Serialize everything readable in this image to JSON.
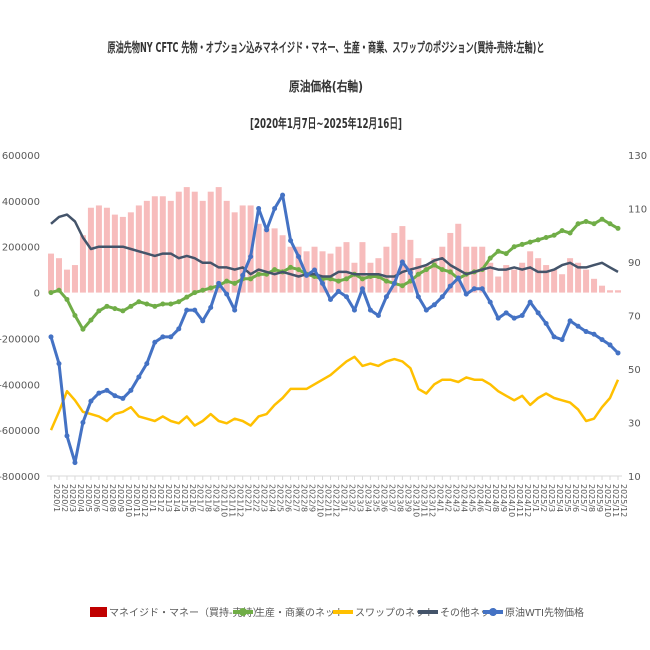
{
  "chart_data": {
    "type": "line",
    "title": [
      "原油先物NY CFTC 先物・オプション込みマネイジド・マネー、生産・商業、スワップのポジション(買持-売持:左軸)と",
      "原油価格(右軸)",
      "[2020年1月7日~2025年12月16日]"
    ],
    "left_axis": {
      "ylim": [
        -800000,
        600000
      ],
      "ticks": [
        600000,
        400000,
        200000,
        0,
        -200000,
        -400000,
        -600000,
        -800000
      ]
    },
    "right_axis": {
      "ylim": [
        10,
        130
      ],
      "ticks": [
        130,
        110,
        90,
        70,
        50,
        30,
        10
      ]
    },
    "categories": [
      "2020/1",
      "2020/2",
      "2020/3",
      "2020/4",
      "2020/5",
      "2020/6",
      "2020/7",
      "2020/8",
      "2020/9",
      "2020/10",
      "2020/11",
      "2020/12",
      "2021/1",
      "2021/2",
      "2021/3",
      "2021/4",
      "2021/5",
      "2021/6",
      "2021/7",
      "2021/8",
      "2021/9",
      "2021/10",
      "2021/11",
      "2021/12",
      "2022/1",
      "2022/2",
      "2022/3",
      "2022/4",
      "2022/5",
      "2022/6",
      "2022/7",
      "2022/8",
      "2022/9",
      "2022/10",
      "2022/11",
      "2022/12",
      "2023/1",
      "2023/2",
      "2023/3",
      "2023/4",
      "2023/5",
      "2023/6",
      "2023/7",
      "2023/8",
      "2023/9",
      "2023/10",
      "2023/11",
      "2023/12",
      "2024/1",
      "2024/2",
      "2024/3",
      "2024/4",
      "2024/5",
      "2024/6",
      "2024/7",
      "2024/8",
      "2024/9",
      "2024/10",
      "2024/11",
      "2024/12",
      "2025/1",
      "2025/2",
      "2025/3",
      "2025/4",
      "2025/5",
      "2025/6",
      "2025/7",
      "2025/8",
      "2025/9",
      "2025/10",
      "2025/11",
      "2025/12"
    ],
    "series": [
      {
        "name": "マネイジド・マネー（買持-売持）",
        "type": "bar",
        "axis": "left",
        "color": "#f4a6a6",
        "legend_color": "#c00000",
        "values": [
          170000,
          150000,
          100000,
          120000,
          250000,
          370000,
          380000,
          370000,
          340000,
          330000,
          350000,
          380000,
          400000,
          420000,
          420000,
          400000,
          440000,
          460000,
          440000,
          400000,
          440000,
          460000,
          400000,
          350000,
          380000,
          380000,
          300000,
          280000,
          280000,
          250000,
          200000,
          200000,
          180000,
          200000,
          180000,
          170000,
          200000,
          220000,
          130000,
          220000,
          130000,
          150000,
          200000,
          260000,
          290000,
          230000,
          150000,
          120000,
          150000,
          200000,
          260000,
          300000,
          200000,
          200000,
          200000,
          130000,
          70000,
          120000,
          100000,
          130000,
          180000,
          150000,
          120000,
          100000,
          80000,
          150000,
          130000,
          100000,
          60000,
          30000,
          10000,
          10000
        ]
      },
      {
        "name": "生産・商業のネット",
        "type": "line",
        "axis": "left",
        "color": "#70ad47",
        "marker": true,
        "values": [
          0,
          10000,
          -30000,
          -100000,
          -160000,
          -120000,
          -80000,
          -60000,
          -70000,
          -80000,
          -60000,
          -40000,
          -50000,
          -60000,
          -50000,
          -50000,
          -40000,
          -20000,
          0,
          10000,
          20000,
          30000,
          50000,
          40000,
          60000,
          60000,
          80000,
          80000,
          100000,
          90000,
          110000,
          100000,
          80000,
          70000,
          60000,
          60000,
          50000,
          60000,
          80000,
          60000,
          70000,
          70000,
          50000,
          40000,
          30000,
          50000,
          80000,
          100000,
          120000,
          100000,
          90000,
          60000,
          80000,
          90000,
          100000,
          150000,
          180000,
          170000,
          200000,
          210000,
          220000,
          230000,
          240000,
          250000,
          270000,
          260000,
          300000,
          310000,
          300000,
          320000,
          300000,
          280000
        ]
      },
      {
        "name": "スワップのネット",
        "type": "line",
        "axis": "left",
        "color": "#ffc000",
        "marker": false,
        "values": [
          -600000,
          -520000,
          -430000,
          -470000,
          -520000,
          -530000,
          -540000,
          -560000,
          -530000,
          -520000,
          -500000,
          -540000,
          -550000,
          -560000,
          -540000,
          -560000,
          -570000,
          -540000,
          -580000,
          -560000,
          -530000,
          -560000,
          -570000,
          -550000,
          -560000,
          -580000,
          -540000,
          -530000,
          -490000,
          -460000,
          -420000,
          -420000,
          -420000,
          -400000,
          -380000,
          -360000,
          -330000,
          -300000,
          -280000,
          -320000,
          -310000,
          -320000,
          -300000,
          -290000,
          -300000,
          -330000,
          -420000,
          -440000,
          -400000,
          -380000,
          -380000,
          -390000,
          -370000,
          -380000,
          -380000,
          -400000,
          -430000,
          -450000,
          -470000,
          -450000,
          -490000,
          -460000,
          -440000,
          -460000,
          -470000,
          -480000,
          -510000,
          -560000,
          -550000,
          -500000,
          -460000,
          -380000
        ]
      },
      {
        "name": "その他ネット",
        "type": "line",
        "axis": "left",
        "color": "#44546a",
        "marker": false,
        "values": [
          300000,
          330000,
          340000,
          310000,
          240000,
          190000,
          200000,
          200000,
          200000,
          200000,
          190000,
          180000,
          170000,
          160000,
          170000,
          170000,
          150000,
          160000,
          150000,
          130000,
          130000,
          110000,
          110000,
          100000,
          110000,
          80000,
          100000,
          90000,
          80000,
          90000,
          80000,
          70000,
          80000,
          80000,
          70000,
          70000,
          90000,
          90000,
          80000,
          80000,
          80000,
          80000,
          70000,
          70000,
          90000,
          100000,
          110000,
          120000,
          140000,
          150000,
          120000,
          100000,
          80000,
          90000,
          100000,
          110000,
          100000,
          100000,
          110000,
          100000,
          110000,
          90000,
          90000,
          100000,
          120000,
          130000,
          110000,
          110000,
          120000,
          130000,
          110000,
          90000
        ]
      },
      {
        "name": "原油WTI先物価格",
        "type": "line",
        "axis": "right",
        "color": "#4472c4",
        "marker": true,
        "values": [
          62,
          52,
          25,
          15,
          30,
          38,
          41,
          42,
          40,
          39,
          42,
          47,
          52,
          60,
          62,
          62,
          65,
          72,
          72,
          68,
          73,
          82,
          78,
          72,
          85,
          92,
          110,
          102,
          110,
          115,
          98,
          92,
          85,
          87,
          82,
          76,
          79,
          77,
          72,
          80,
          72,
          70,
          77,
          82,
          90,
          86,
          77,
          72,
          74,
          77,
          81,
          84,
          78,
          80,
          80,
          75,
          69,
          71,
          69,
          70,
          75,
          71,
          67,
          62,
          61,
          68,
          66,
          64,
          63,
          61,
          59,
          56
        ]
      }
    ],
    "grid": false,
    "legend_position": "bottom"
  }
}
